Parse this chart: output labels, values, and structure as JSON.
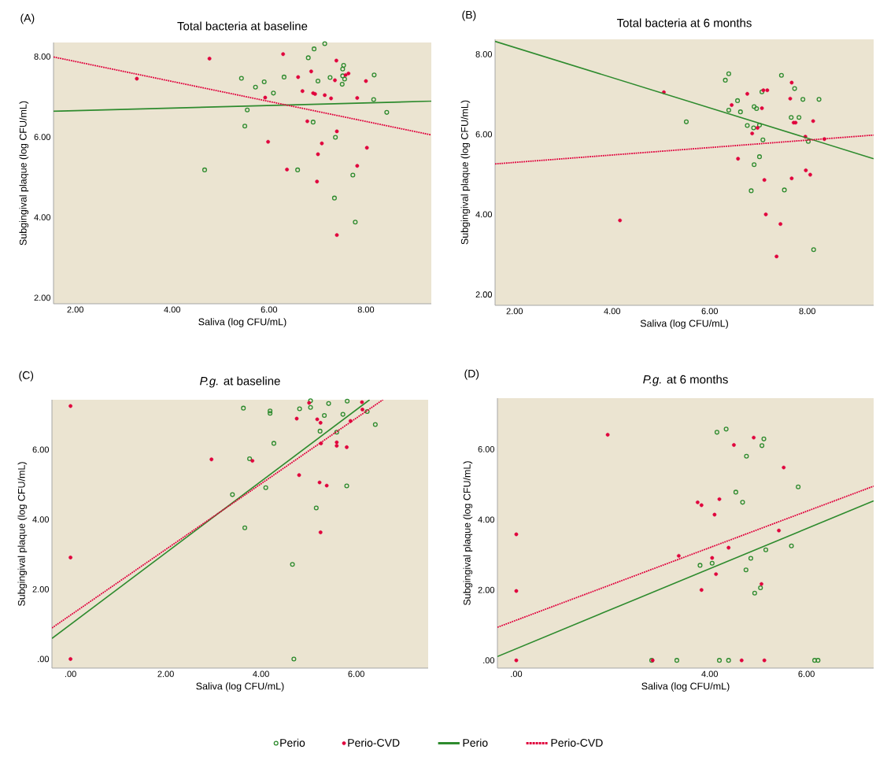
{
  "chart_data": [
    {
      "type": "scatter",
      "title": "Total bacteria at baseline",
      "xlabel": "Saliva (log CFU/mL)",
      "ylabel": "Subgingival plaque (log CFU/mL)",
      "annotations": [
        "(A)"
      ],
      "xlim": [
        1.55,
        9.35
      ],
      "ylim": [
        1.85,
        8.35
      ],
      "xticks": [
        {
          "value": 2,
          "label": "2.00"
        },
        {
          "value": 4,
          "label": "4.00"
        },
        {
          "value": 6,
          "label": "6.00"
        },
        {
          "value": 8,
          "label": "8.00"
        }
      ],
      "yticks": [
        {
          "value": 2,
          "label": "2.00"
        },
        {
          "value": 4,
          "label": "4.00"
        },
        {
          "value": 6,
          "label": "6.00"
        },
        {
          "value": 8,
          "label": "8.00"
        }
      ],
      "series": [
        {
          "marker": "circle",
          "color": "#2e8b2e",
          "x": [
            7.15,
            6.93,
            6.81,
            7.54,
            7.52,
            7.52,
            7.56,
            7.51,
            7.26,
            7.01,
            6.31,
            5.43,
            5.72,
            5.9,
            6.09,
            8.17,
            8.16,
            8.43,
            5.55,
            5.5,
            6.91,
            7.37,
            4.67,
            6.59,
            7.73,
            7.35,
            7.78
          ],
          "values": [
            8.32,
            8.19,
            7.97,
            7.78,
            7.69,
            7.52,
            7.44,
            7.31,
            7.48,
            7.39,
            7.49,
            7.46,
            7.24,
            7.37,
            7.09,
            7.54,
            6.93,
            6.61,
            6.67,
            6.27,
            6.37,
            5.99,
            5.18,
            5.18,
            5.05,
            4.48,
            3.88
          ]
        },
        {
          "marker": "circle",
          "color": "#e0003c",
          "x": [
            3.27,
            4.77,
            6.29,
            7.39,
            6.6,
            6.87,
            7.36,
            7.58,
            7.64,
            8.0,
            6.69,
            6.91,
            6.95,
            7.15,
            7.28,
            5.92,
            7.82,
            6.79,
            7.4,
            5.98,
            7.09,
            8.02,
            7.01,
            6.37,
            7.82,
            6.99,
            7.4
          ],
          "values": [
            7.45,
            7.95,
            8.06,
            7.9,
            7.49,
            7.63,
            7.41,
            7.54,
            7.58,
            7.39,
            7.14,
            7.09,
            7.07,
            7.04,
            6.96,
            6.98,
            6.97,
            6.39,
            6.14,
            5.88,
            5.84,
            5.73,
            5.57,
            5.19,
            5.28,
            4.89,
            3.56
          ]
        },
        {
          "type": "line",
          "line_style": "solid",
          "color": "#2e8b2e",
          "x": [
            1.55,
            9.35
          ],
          "values": [
            6.64,
            6.89
          ]
        },
        {
          "type": "line",
          "line_style": "dotted",
          "color": "#e0003c",
          "x": [
            1.55,
            9.35
          ],
          "values": [
            7.99,
            6.05
          ]
        }
      ]
    },
    {
      "type": "scatter",
      "title": "Total bacteria at 6 months",
      "xlabel": "Saliva (log CFU/mL)",
      "ylabel": "Subgingival plaque (log CFU/mL)",
      "annotations": [
        "(B)"
      ],
      "xlim": [
        1.6,
        9.36
      ],
      "ylim": [
        1.73,
        8.37
      ],
      "xticks": [
        {
          "value": 2,
          "label": "2.00"
        },
        {
          "value": 4,
          "label": "4.00"
        },
        {
          "value": 6,
          "label": "6.00"
        },
        {
          "value": 8,
          "label": "8.00"
        }
      ],
      "yticks": [
        {
          "value": 2,
          "label": "2.00"
        },
        {
          "value": 4,
          "label": "4.00"
        },
        {
          "value": 6,
          "label": "6.00"
        },
        {
          "value": 8,
          "label": "8.00"
        }
      ],
      "series": [
        {
          "marker": "circle",
          "color": "#2e8b2e",
          "x": [
            6.39,
            6.32,
            7.47,
            7.74,
            7.07,
            6.57,
            7.91,
            8.24,
            6.39,
            6.63,
            6.91,
            6.96,
            7.67,
            7.83,
            5.52,
            6.77,
            6.9,
            7.02,
            7.09,
            8.02,
            7.02,
            6.91,
            6.85,
            7.53,
            8.13
          ],
          "values": [
            7.51,
            7.35,
            7.47,
            7.14,
            7.06,
            6.84,
            6.87,
            6.87,
            6.6,
            6.56,
            6.69,
            6.64,
            6.42,
            6.42,
            6.31,
            6.22,
            6.16,
            6.23,
            5.86,
            5.82,
            5.44,
            5.24,
            4.59,
            4.61,
            3.12
          ]
        },
        {
          "marker": "circle",
          "color": "#e0003c",
          "x": [
            5.06,
            4.16,
            6.45,
            6.77,
            7.07,
            7.1,
            7.18,
            6.98,
            6.87,
            6.58,
            7.12,
            7.15,
            7.45,
            7.68,
            7.65,
            7.72,
            7.76,
            8.12,
            7.96,
            8.35,
            7.97,
            8.06,
            7.68,
            7.37
          ],
          "values": [
            7.05,
            3.85,
            6.73,
            7.01,
            6.65,
            7.1,
            7.1,
            6.16,
            6.02,
            5.39,
            4.86,
            4.0,
            3.76,
            7.29,
            6.89,
            6.29,
            6.29,
            6.33,
            5.94,
            5.88,
            5.1,
            4.99,
            4.9,
            2.95
          ]
        },
        {
          "type": "line",
          "line_style": "solid",
          "color": "#2e8b2e",
          "x": [
            1.6,
            9.36
          ],
          "values": [
            8.32,
            5.39
          ]
        },
        {
          "type": "line",
          "line_style": "dotted",
          "color": "#e0003c",
          "x": [
            1.6,
            9.36
          ],
          "values": [
            5.26,
            5.98
          ]
        }
      ]
    },
    {
      "type": "scatter",
      "title": "*P.g.* at baseline",
      "xlabel": "Saliva (log CFU/mL)",
      "ylabel": "Subgingival plaque (log CFU/mL)",
      "annotations": [
        "(C)"
      ],
      "legend": "bottom",
      "xlim": [
        -0.39,
        7.51
      ],
      "ylim": [
        -0.26,
        7.43
      ],
      "xticks": [
        {
          "value": 0,
          "label": ".00"
        },
        {
          "value": 2,
          "label": "2.00"
        },
        {
          "value": 4,
          "label": "4.00"
        },
        {
          "value": 6,
          "label": "6.00"
        }
      ],
      "yticks": [
        {
          "value": 0,
          "label": ".00"
        },
        {
          "value": 2,
          "label": "2.00"
        },
        {
          "value": 4,
          "label": "4.00"
        },
        {
          "value": 6,
          "label": "6.00"
        }
      ],
      "series": [
        {
          "name": "Perio",
          "marker": "circle",
          "color": "#2e8b2e",
          "x": [
            3.63,
            4.19,
            4.19,
            4.81,
            5.04,
            5.04,
            5.42,
            5.81,
            5.33,
            5.72,
            6.23,
            6.4,
            5.24,
            5.59,
            4.27,
            3.76,
            4.1,
            3.4,
            5.8,
            5.16,
            3.66,
            4.66,
            4.69
          ],
          "values": [
            7.19,
            7.11,
            7.04,
            7.17,
            7.21,
            7.4,
            7.32,
            7.39,
            6.98,
            7.01,
            7.09,
            6.72,
            6.53,
            6.5,
            6.18,
            5.74,
            4.91,
            4.71,
            4.96,
            4.33,
            3.76,
            2.71,
            0
          ]
        },
        {
          "name": "Perio-CVD",
          "marker": "circle",
          "color": "#e0003c",
          "x": [
            0,
            0,
            0,
            2.96,
            3.82,
            4.75,
            5.01,
            6.12,
            6.13,
            5.18,
            5.25,
            5.88,
            5.26,
            5.59,
            5.59,
            5.8,
            4.8,
            5.23,
            5.38,
            5.25
          ],
          "values": [
            7.25,
            2.91,
            0,
            5.72,
            5.68,
            6.89,
            7.34,
            7.36,
            7.15,
            6.87,
            6.77,
            6.82,
            6.18,
            6.21,
            6.11,
            6.07,
            5.27,
            5.06,
            4.97,
            3.63
          ]
        },
        {
          "name": "Perio",
          "type": "line",
          "line_style": "solid",
          "color": "#2e8b2e",
          "x": [
            -0.39,
            6.28
          ],
          "values": [
            0.59,
            7.43
          ]
        },
        {
          "name": "Perio-CVD",
          "type": "line",
          "line_style": "dotted",
          "color": "#e0003c",
          "x": [
            -0.39,
            6.56
          ],
          "values": [
            0.89,
            7.43
          ]
        }
      ]
    },
    {
      "type": "scatter",
      "title": "*P.g.* at 6 months",
      "xlabel": "Saliva (log CFU/mL)",
      "ylabel": "Subgingival plaque (log CFU/mL)",
      "annotations": [
        "(D)"
      ],
      "xlim": [
        -0.39,
        7.39
      ],
      "ylim": [
        -0.22,
        7.45
      ],
      "xticks": [
        {
          "value": 0,
          "label": ".00"
        },
        {
          "value": 4,
          "label": "4.00"
        },
        {
          "value": 6,
          "label": "6.00"
        }
      ],
      "yticks": [
        {
          "value": 0,
          "label": ".00"
        },
        {
          "value": 2,
          "label": "2.00"
        },
        {
          "value": 4,
          "label": "4.00"
        },
        {
          "value": 6,
          "label": "6.00"
        }
      ],
      "series": [
        {
          "marker": "circle",
          "color": "#2e8b2e",
          "x": [
            4.15,
            4.34,
            5.12,
            5.08,
            4.76,
            4.54,
            4.68,
            5.83,
            5.69,
            5.16,
            4.85,
            3.8,
            4.05,
            4.75,
            5.05,
            4.93,
            2.8,
            3.32,
            4.2,
            4.39,
            6.17,
            6.24
          ],
          "values": [
            6.48,
            6.57,
            6.29,
            6.1,
            5.8,
            4.78,
            4.49,
            4.93,
            3.25,
            3.14,
            2.9,
            2.7,
            2.76,
            2.57,
            2.06,
            1.91,
            0,
            0,
            0,
            0,
            0,
            0
          ]
        },
        {
          "marker": "circle",
          "color": "#e0003c",
          "x": [
            0,
            0,
            0,
            1.89,
            2.82,
            3.36,
            3.75,
            3.83,
            4.1,
            4.2,
            4.05,
            4.13,
            3.83,
            4.39,
            4.5,
            4.91,
            4.66,
            5.13,
            5.07,
            5.43,
            5.53
          ],
          "values": [
            3.58,
            1.97,
            0,
            6.41,
            0,
            2.97,
            4.49,
            4.41,
            4.14,
            4.58,
            2.91,
            2.45,
            2.0,
            3.2,
            6.12,
            6.33,
            0,
            0,
            2.17,
            3.69,
            5.48
          ]
        },
        {
          "type": "line",
          "line_style": "solid",
          "color": "#2e8b2e",
          "x": [
            -0.39,
            7.39
          ],
          "values": [
            0.11,
            4.53
          ]
        },
        {
          "type": "line",
          "line_style": "dotted",
          "color": "#e0003c",
          "x": [
            -0.39,
            7.39
          ],
          "values": [
            0.94,
            4.95
          ]
        }
      ]
    }
  ]
}
